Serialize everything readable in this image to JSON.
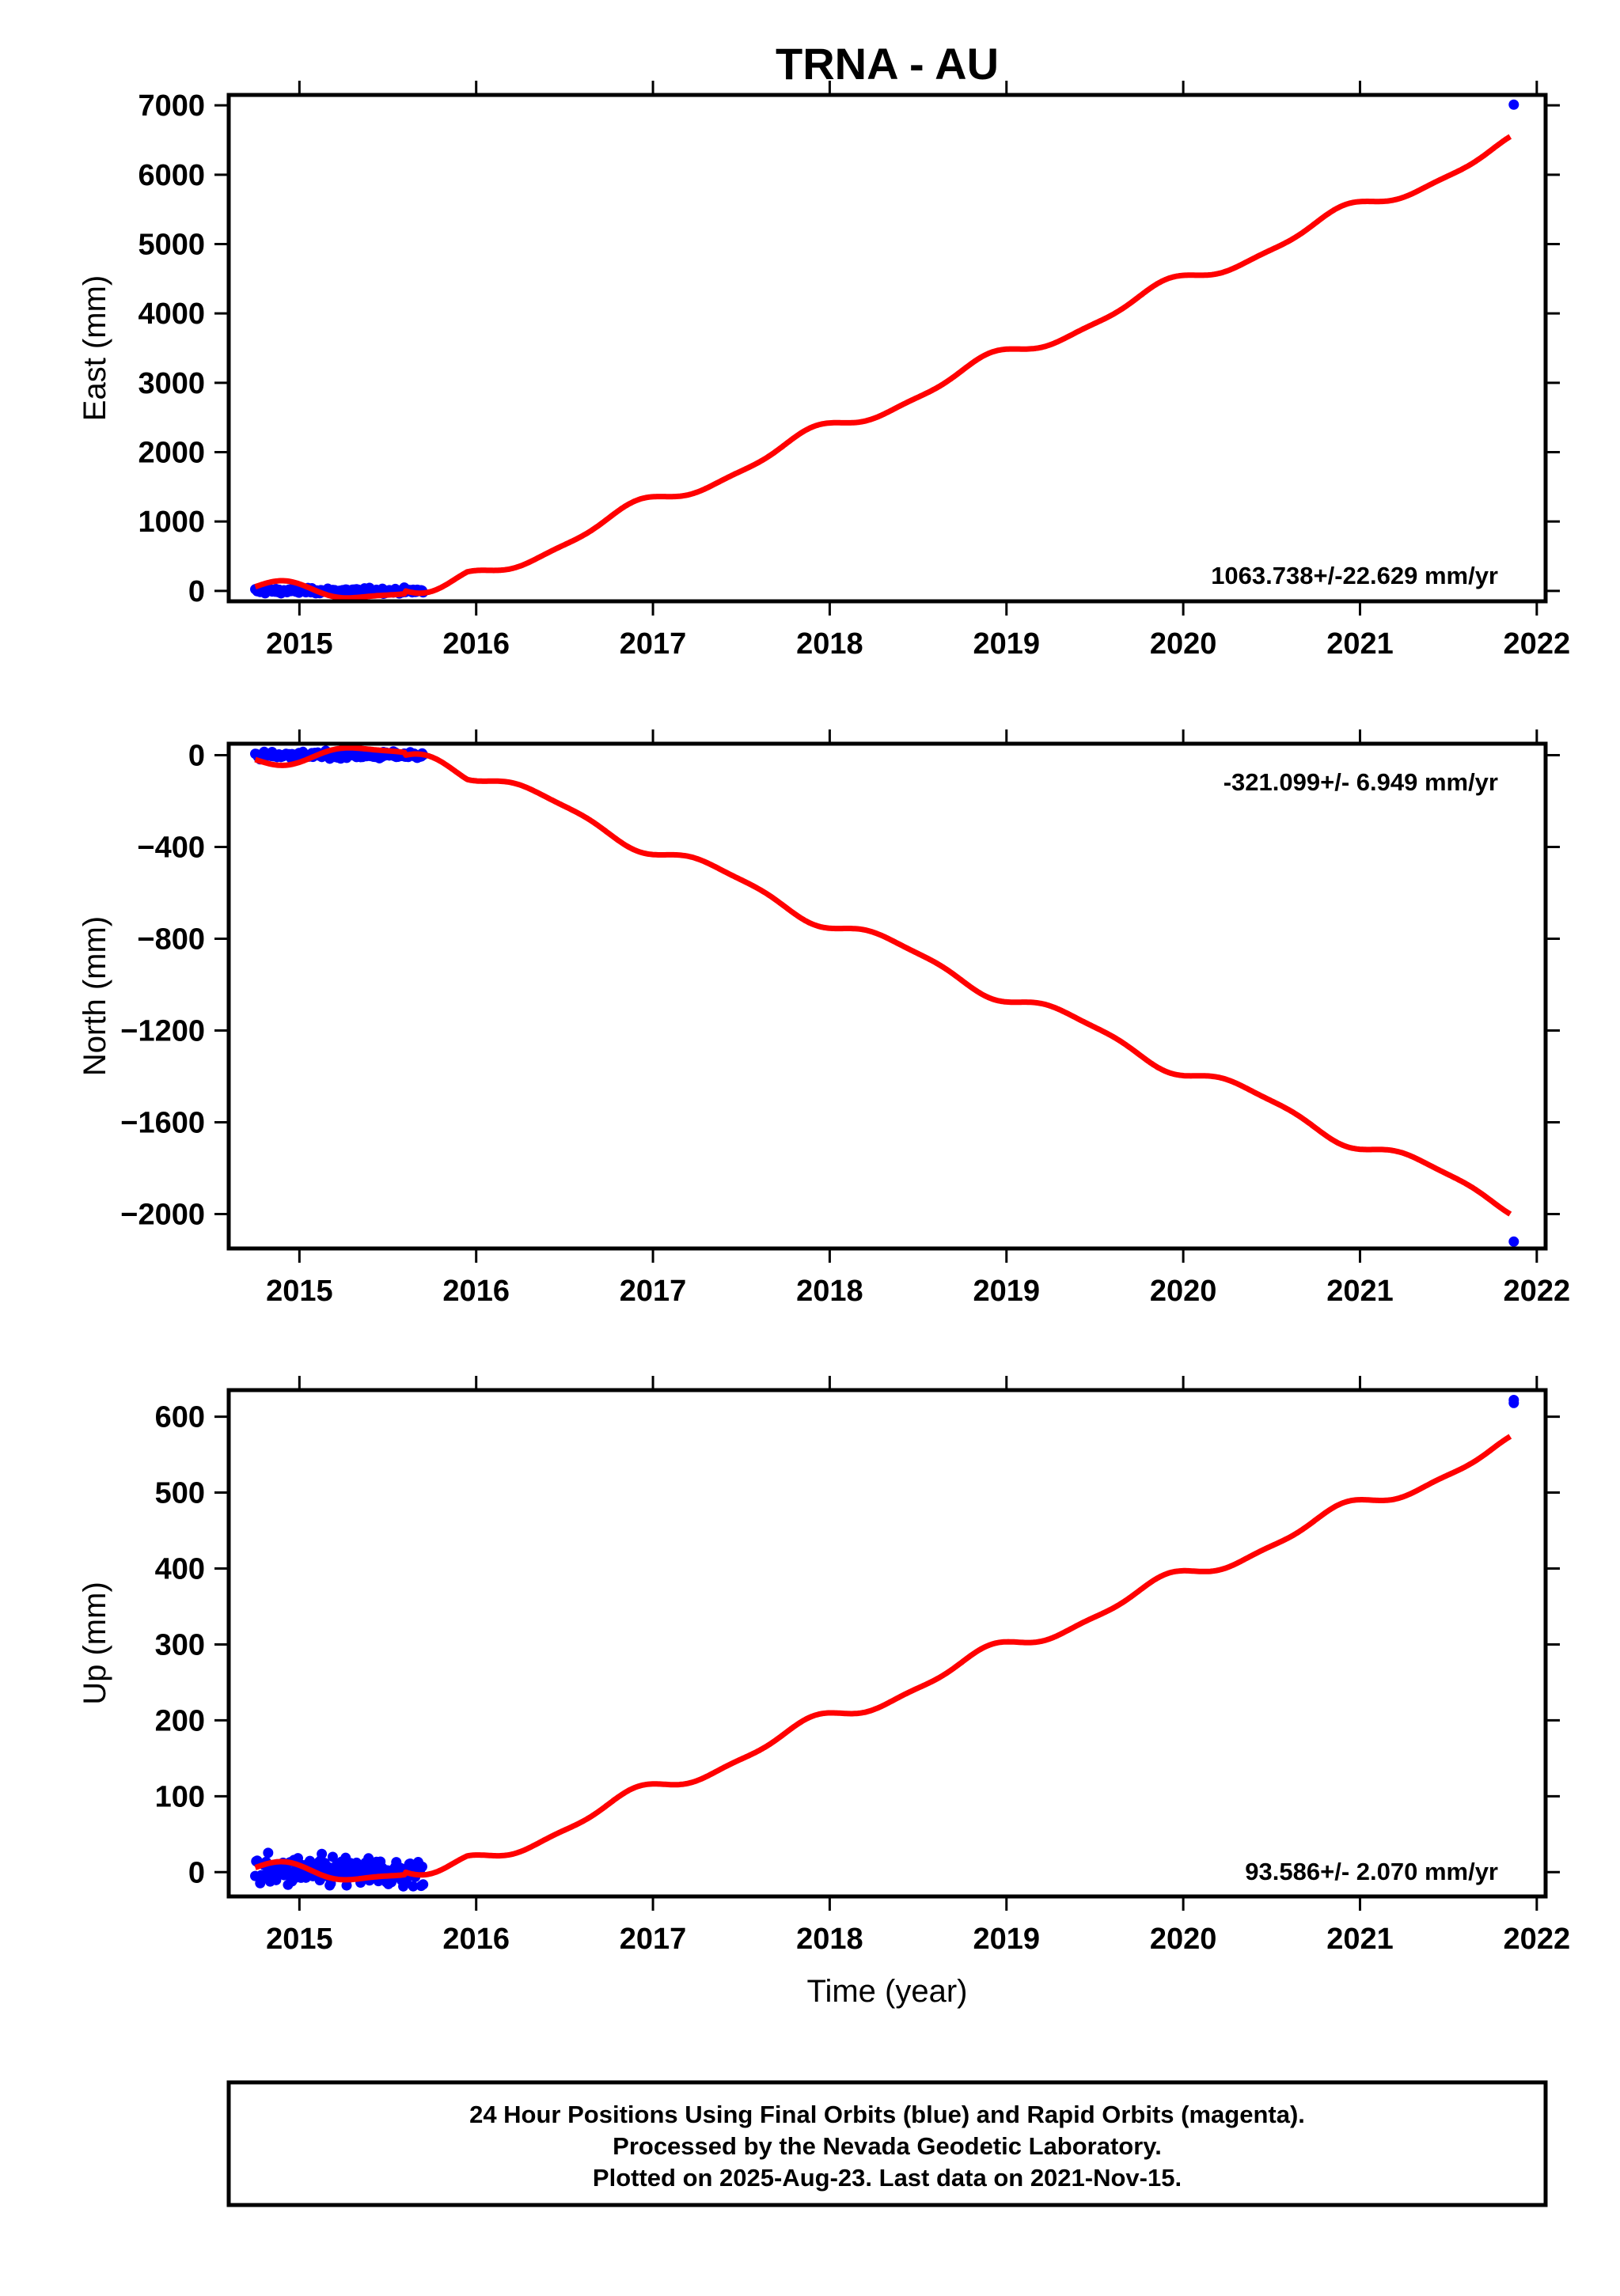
{
  "title": "TRNA - AU",
  "x_axis_label": "Time (year)",
  "footer_lines": [
    "24 Hour Positions Using Final Orbits (blue) and Rapid Orbits (magenta).",
    "Processed by the Nevada Geodetic Laboratory.",
    "Plotted on 2025-Aug-23. Last data on 2021-Nov-15."
  ],
  "colors": {
    "final_orbits": "#0000ff",
    "model_fit": "#ff0000",
    "axes": "#000000"
  },
  "chart_data": [
    {
      "type": "scatter",
      "ylabel": "East (mm)",
      "rate": "1063.738+/-22.629 mm/yr",
      "xlim": [
        2014.6,
        2022.05
      ],
      "ylim": [
        -150,
        7150
      ],
      "x_ticks": [
        2015,
        2016,
        2017,
        2018,
        2019,
        2020,
        2021,
        2022
      ],
      "y_ticks": [
        0,
        1000,
        2000,
        3000,
        4000,
        5000,
        6000,
        7000
      ],
      "grid": false,
      "points_span": {
        "x": [
          2014.75,
          2015.7
        ],
        "y_center": 0,
        "y_spread": 25
      },
      "isolated_points": [
        {
          "x": 2021.87,
          "y": 7010
        }
      ],
      "fit": {
        "slope": 1063.7,
        "seasonal": [
          [
            1,
            -80,
            80
          ],
          [
            2,
            -30,
            20
          ]
        ],
        "break_year": 2015.6,
        "intercept_after": -870
      }
    },
    {
      "type": "scatter",
      "ylabel": "North (mm)",
      "rate": "-321.099+/- 6.949 mm/yr",
      "xlim": [
        2014.6,
        2022.05
      ],
      "ylim": [
        -2150,
        50
      ],
      "x_ticks": [
        2015,
        2016,
        2017,
        2018,
        2019,
        2020,
        2021,
        2022
      ],
      "y_ticks": [
        0,
        -400,
        -800,
        -1200,
        -1600,
        -2000
      ],
      "grid": false,
      "points_span": {
        "x": [
          2014.75,
          2015.7
        ],
        "y_center": 0,
        "y_spread": 10
      },
      "isolated_points": [
        {
          "x": 2021.87,
          "y": -2120
        }
      ],
      "fit": {
        "slope": -321.1,
        "seasonal": [
          [
            1,
            25,
            -25
          ],
          [
            2,
            8,
            -6
          ]
        ],
        "break_year": 2015.6,
        "intercept_after": 240
      }
    },
    {
      "type": "scatter",
      "ylabel": "Up (mm)",
      "rate": "93.586+/- 2.070 mm/yr",
      "xlim": [
        2014.6,
        2022.05
      ],
      "ylim": [
        -32,
        635
      ],
      "x_ticks": [
        2015,
        2016,
        2017,
        2018,
        2019,
        2020,
        2021,
        2022
      ],
      "y_ticks": [
        0,
        100,
        200,
        300,
        400,
        500,
        600
      ],
      "grid": false,
      "points_span": {
        "x": [
          2014.75,
          2015.7
        ],
        "y_center": 0,
        "y_spread": 14
      },
      "isolated_points": [
        {
          "x": 2021.87,
          "y": 618
        },
        {
          "x": 2021.87,
          "y": 622
        }
      ],
      "fit": {
        "slope": 93.6,
        "seasonal": [
          [
            1,
            -8,
            7
          ],
          [
            2,
            -3,
            2
          ]
        ],
        "break_year": 2015.6,
        "intercept_after": -80
      }
    }
  ]
}
